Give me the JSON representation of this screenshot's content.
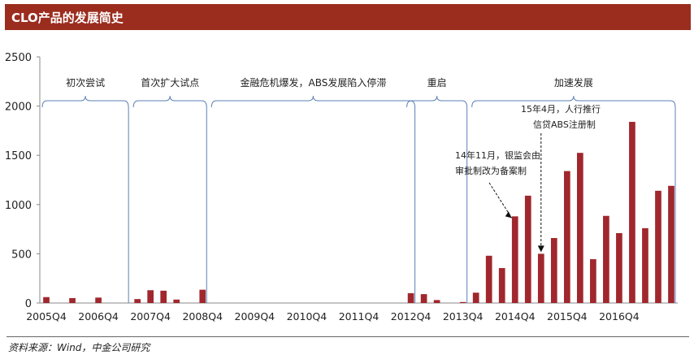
{
  "header": {
    "title": "CLO产品的发展简史"
  },
  "colors": {
    "bar": "#a0272d",
    "title_bg": "#9b2d1f",
    "axis": "#888888",
    "bracket": "#5b7fb5"
  },
  "source": "资料来源：Wind，中金公司研究",
  "chart_data": {
    "type": "bar",
    "ylim": [
      0,
      2500
    ],
    "yticks": [
      0,
      500,
      1000,
      1500,
      2000,
      2500
    ],
    "grid": false,
    "categories": [
      "2005Q4",
      "2006Q1",
      "2006Q2",
      "2006Q3",
      "2006Q4",
      "2007Q1",
      "2007Q2",
      "2007Q3",
      "2007Q4",
      "2008Q1",
      "2008Q2",
      "2008Q3",
      "2008Q4",
      "2009Q1",
      "2009Q2",
      "2009Q3",
      "2009Q4",
      "2010Q1",
      "2010Q2",
      "2010Q3",
      "2010Q4",
      "2011Q1",
      "2011Q2",
      "2011Q3",
      "2011Q4",
      "2012Q1",
      "2012Q2",
      "2012Q3",
      "2012Q4",
      "2013Q1",
      "2013Q2",
      "2013Q3",
      "2013Q4",
      "2014Q1",
      "2014Q2",
      "2014Q3",
      "2014Q4",
      "2015Q1",
      "2015Q2",
      "2015Q3",
      "2015Q4",
      "2016Q1",
      "2016Q2",
      "2016Q3",
      "2016Q4",
      "2017Q1",
      "2017Q2",
      "2017Q3",
      "2017Q4"
    ],
    "values": [
      60,
      0,
      50,
      0,
      55,
      0,
      0,
      40,
      130,
      125,
      35,
      0,
      135,
      0,
      0,
      0,
      0,
      0,
      0,
      0,
      0,
      0,
      0,
      0,
      0,
      0,
      0,
      0,
      100,
      90,
      30,
      0,
      10,
      105,
      480,
      355,
      880,
      1090,
      500,
      660,
      1340,
      1525,
      445,
      885,
      710,
      1840,
      760,
      1140,
      1190
    ],
    "xtick_labels": [
      "2005Q4",
      "2006Q4",
      "2007Q4",
      "2008Q4",
      "2009Q4",
      "2010Q4",
      "2011Q4",
      "2012Q4",
      "2013Q4",
      "2014Q4",
      "2015Q4",
      "2016Q4"
    ],
    "phases": [
      {
        "label": "初次尝试",
        "start": "2005Q4",
        "end": "2007Q2"
      },
      {
        "label": "首次扩大试点",
        "start": "2007Q3",
        "end": "2008Q4"
      },
      {
        "label": "金融危机爆发，ABS发展陷入停滞",
        "start": "2009Q1",
        "end": "2012Q4"
      },
      {
        "label": "重启",
        "start": "2012Q4",
        "end": "2013Q4"
      },
      {
        "label": "加速发展",
        "start": "2014Q1",
        "end": "2017Q4"
      }
    ],
    "annotations": [
      {
        "lines": [
          "14年11月，银监会由",
          "审批制改为备案制"
        ],
        "target": "2014Q4"
      },
      {
        "lines": [
          "15年4月，人行推行",
          "信贷ABS注册制"
        ],
        "target": "2015Q2"
      }
    ]
  }
}
